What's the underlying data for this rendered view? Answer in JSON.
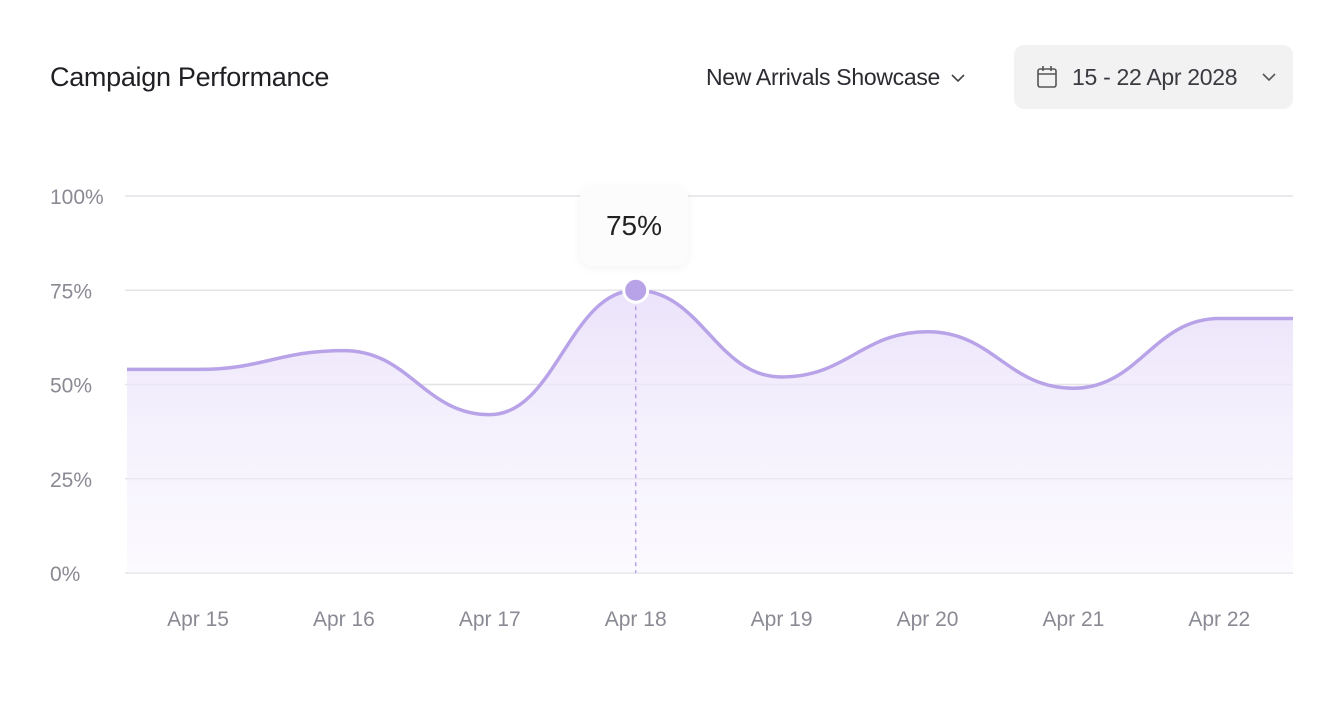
{
  "header": {
    "title": "Campaign Performance",
    "campaign_select": {
      "value": "New Arrivals Showcase",
      "icon": "chevron-down-icon"
    },
    "date_range": {
      "value": "15 - 22 Apr 2028",
      "icon": "calendar-icon",
      "chevron": "chevron-down-icon"
    }
  },
  "tooltip": {
    "label": "75%",
    "category": "Apr 18"
  },
  "colors": {
    "line": "#b9a3e8",
    "fill": "#efe9fb",
    "grid": "#e4e4e8",
    "tick_text": "#8a8a94",
    "marker": "#b9a3e8"
  },
  "chart_data": {
    "type": "area",
    "title": "",
    "xlabel": "",
    "ylabel": "",
    "categories": [
      "Apr 15",
      "Apr 16",
      "Apr 17",
      "Apr 18",
      "Apr 19",
      "Apr 20",
      "Apr 21",
      "Apr 22"
    ],
    "values": [
      54,
      59,
      42,
      75,
      52,
      64,
      49,
      67.5
    ],
    "y_ticks": [
      "0%",
      "25%",
      "50%",
      "75%",
      "100%"
    ],
    "ylim": [
      0,
      100
    ],
    "y_unit": "%",
    "grid": "horizontal",
    "highlight": {
      "category": "Apr 18",
      "value": 75
    }
  }
}
